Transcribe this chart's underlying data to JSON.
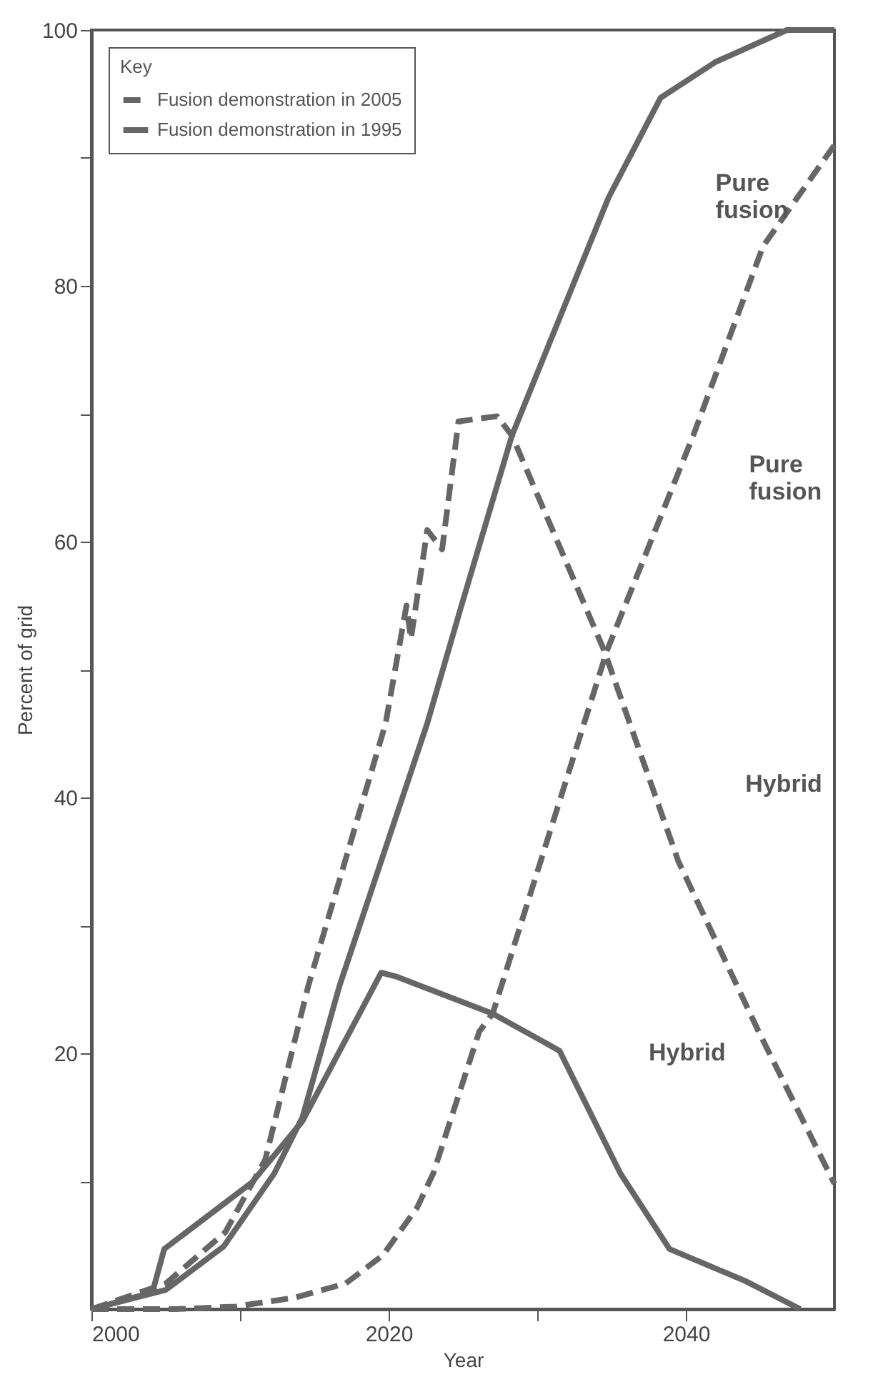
{
  "chart_data": {
    "type": "line",
    "xlabel": "Year",
    "ylabel": "Percent of grid",
    "legend_title": "Key",
    "xlim": [
      2000,
      2050
    ],
    "xticks": [
      2000,
      {
        "value": 2010,
        "label": null
      },
      2020,
      {
        "value": 2030,
        "label": null
      },
      2040
    ],
    "ylim": [
      0,
      100
    ],
    "yticks": [
      {
        "value": 10,
        "label": null
      },
      20,
      {
        "value": 30,
        "label": null
      },
      40,
      {
        "value": 50,
        "label": null
      },
      60,
      {
        "value": 70,
        "label": null
      },
      80,
      {
        "value": 90,
        "label": null
      },
      100
    ],
    "grid": false,
    "legend": "top left",
    "marker": "none",
    "series": [
      {
        "name": "Fusion demonstration in 2005",
        "color": "#666666",
        "line_style": "dashed",
        "x": [
          2000,
          2005,
          2009,
          2011.7,
          2014.6,
          2019.8,
          2021.2,
          2021.5,
          2022.6,
          2023.6,
          2024.7,
          2027.3,
          2028.3,
          2034.5,
          2039.5,
          2044.9,
          2050
        ],
        "values": [
          0,
          2,
          6,
          11.7,
          25.3,
          45.8,
          55,
          52.4,
          60.9,
          59.4,
          69.4,
          69.8,
          68.3,
          51.5,
          35,
          21.7,
          9.8
        ]
      },
      {
        "color": "#666666",
        "line_style": "dashed",
        "x": [
          2000,
          2005.7,
          2009.7,
          2013.7,
          2017.1,
          2019.6,
          2021.9,
          2023,
          2026.1,
          2027,
          2034.7,
          2040.5,
          2045.2,
          2050
        ],
        "values": [
          0,
          0,
          0.2,
          0.9,
          2,
          4.2,
          7.9,
          10.6,
          21.7,
          23.1,
          51.5,
          68.3,
          83.1,
          91
        ]
      },
      {
        "name": "Fusion demonstration in 1995",
        "color": "#666666",
        "line_style": "solid",
        "x": [
          2000,
          2005,
          2008.9,
          2012.3,
          2014.2,
          2016.7,
          2022.6,
          2024.9,
          2028.3,
          2034.8,
          2038.3,
          2042,
          2046.8,
          2050
        ],
        "values": [
          0,
          1.5,
          4.9,
          10.6,
          15,
          25.3,
          45.8,
          55,
          68.3,
          86.9,
          94.7,
          97.5,
          100,
          100
        ]
      },
      {
        "color": "#666666",
        "line_style": "solid",
        "x": [
          2000,
          2004.1,
          2004.9,
          2010.8,
          2014.2,
          2019.5,
          2020.5,
          2027,
          2031.5,
          2035.6,
          2038.9,
          2044,
          2047.7
        ],
        "values": [
          0,
          1.3,
          4.7,
          9.9,
          14.7,
          26.3,
          26,
          23.1,
          20.2,
          10.6,
          4.7,
          2.2,
          0
        ]
      }
    ],
    "annotations": [
      "Pure fusion",
      "Pure fusion",
      "Hybrid",
      "Hybrid"
    ]
  }
}
